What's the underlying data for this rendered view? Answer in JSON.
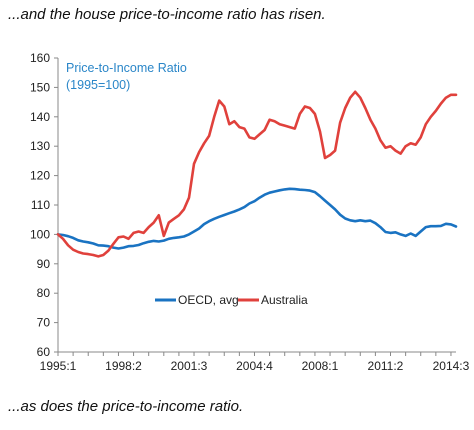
{
  "captions": {
    "top": "...and the house price-to-income ratio has risen.",
    "bottom": "...as does the price-to-income ratio."
  },
  "chart_data": {
    "type": "line",
    "title": "Price-to-Income Ratio",
    "subtitle": "(1995=100)",
    "xlabel": "",
    "ylabel": "",
    "ylim": [
      60,
      160
    ],
    "yticks": [
      60,
      70,
      80,
      90,
      100,
      110,
      120,
      130,
      140,
      150,
      160
    ],
    "xticks": [
      {
        "label": "1995:1",
        "index": 0
      },
      {
        "label": "1998:2",
        "index": 13
      },
      {
        "label": "2001:3",
        "index": 26
      },
      {
        "label": "2004:4",
        "index": 39
      },
      {
        "label": "2008:1",
        "index": 52
      },
      {
        "label": "2011:2",
        "index": 65
      },
      {
        "label": "2014:3",
        "index": 78
      }
    ],
    "n_points": 80,
    "legend_position": "center",
    "grid": false,
    "series": [
      {
        "name": "OECD, avg",
        "color": "#1a73c2",
        "values": [
          100,
          99.8,
          99.4,
          98.8,
          98.0,
          97.6,
          97.3,
          96.9,
          96.3,
          96.2,
          96.0,
          95.5,
          95.2,
          95.5,
          96.0,
          96.1,
          96.4,
          97.0,
          97.5,
          97.8,
          97.6,
          97.9,
          98.5,
          98.8,
          99.0,
          99.3,
          100,
          101,
          102,
          103.5,
          104.5,
          105.3,
          106,
          106.6,
          107.2,
          107.8,
          108.5,
          109.3,
          110.5,
          111.3,
          112.5,
          113.5,
          114.2,
          114.6,
          115.0,
          115.3,
          115.5,
          115.4,
          115.2,
          115.1,
          114.9,
          114.4,
          113.0,
          111.5,
          110.0,
          108.5,
          106.7,
          105.4,
          104.8,
          104.5,
          104.8,
          104.5,
          104.7,
          103.8,
          102.5,
          100.8,
          100.5,
          100.7,
          100.0,
          99.5,
          100.3,
          99.5,
          101.0,
          102.5,
          102.8,
          102.8,
          102.9,
          103.6,
          103.4,
          102.7
        ]
      },
      {
        "name": "Australia",
        "color": "#e0413c",
        "values": [
          100,
          98.5,
          96.3,
          94.8,
          94.0,
          93.5,
          93.3,
          93.0,
          92.5,
          93.0,
          94.5,
          96.8,
          99.0,
          99.3,
          98.5,
          100.5,
          101.0,
          100.5,
          102.5,
          104.0,
          106.5,
          99.5,
          104.0,
          105.3,
          106.5,
          108.5,
          112.5,
          124.0,
          128.0,
          131.0,
          133.5,
          140.0,
          145.5,
          143.5,
          137.5,
          138.5,
          136.5,
          136.0,
          133.0,
          132.5,
          134.0,
          135.5,
          139.0,
          138.5,
          137.5,
          137.0,
          136.5,
          136.0,
          141.0,
          143.5,
          143.0,
          141.0,
          135.0,
          126.0,
          127.0,
          128.5,
          138.0,
          143.0,
          146.5,
          148.5,
          146.5,
          143.0,
          139.0,
          136.0,
          132.0,
          129.5,
          130.0,
          128.5,
          127.5,
          130.0,
          131.0,
          130.5,
          133.0,
          137.5,
          140.0,
          142.0,
          144.5,
          146.5,
          147.5,
          147.5
        ]
      }
    ]
  }
}
